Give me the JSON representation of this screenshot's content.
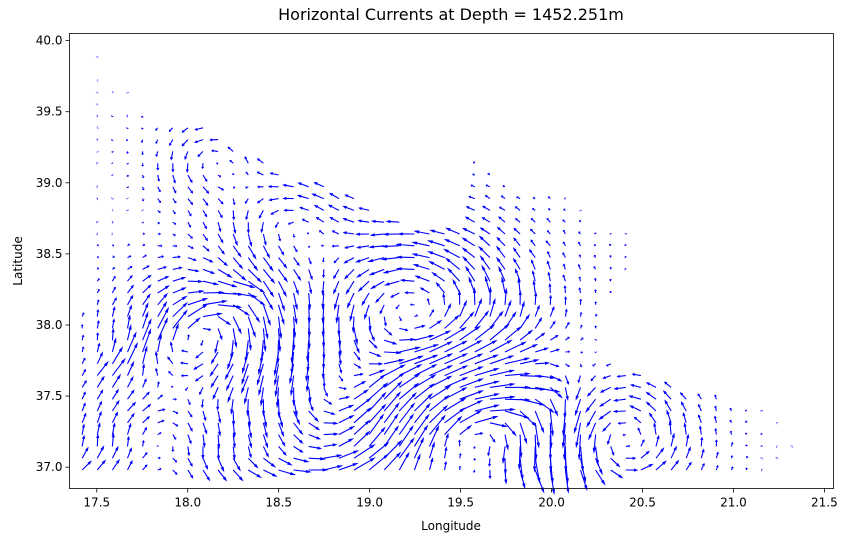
{
  "chart_data": {
    "type": "quiver",
    "title": "Horizontal Currents at Depth = 1452.251m",
    "xlabel": "Longitude",
    "ylabel": "Latitude",
    "xlim": [
      17.35,
      21.55
    ],
    "ylim": [
      36.85,
      40.05
    ],
    "x_ticks": [
      "17.5",
      "18.0",
      "18.5",
      "19.0",
      "19.5",
      "20.0",
      "20.5",
      "21.0",
      "21.5"
    ],
    "y_ticks": [
      "37.0",
      "37.5",
      "38.0",
      "38.5",
      "39.0",
      "39.5",
      "40.0"
    ],
    "grid": false,
    "legend": false,
    "arrow_color": "#0000ff",
    "grid_spacing_deg": 0.083,
    "eddies": [
      {
        "center": [
          19.25,
          38.05
        ],
        "radius": 0.42,
        "rotation": "counterclockwise",
        "strength": 0.9
      },
      {
        "center": [
          19.55,
          37.25
        ],
        "radius": 0.38,
        "rotation": "clockwise",
        "strength": 0.9
      },
      {
        "center": [
          18.05,
          37.95
        ],
        "radius": 0.28,
        "rotation": "clockwise",
        "strength": 0.7
      },
      {
        "center": [
          20.35,
          37.2
        ],
        "radius": 0.28,
        "rotation": "counterclockwise",
        "strength": 0.7
      },
      {
        "center": [
          18.8,
          37.45
        ],
        "radius": 0.25,
        "rotation": "counterclockwise",
        "strength": 0.5
      },
      {
        "center": [
          17.85,
          37.15
        ],
        "radius": 0.3,
        "rotation": "clockwise",
        "strength": 0.6
      },
      {
        "center": [
          18.55,
          38.7
        ],
        "radius": 0.25,
        "rotation": "counterclockwise",
        "strength": 0.5
      },
      {
        "center": [
          18.15,
          39.15
        ],
        "radius": 0.2,
        "rotation": "counterclockwise",
        "strength": 0.4
      }
    ],
    "dominant_currents": [
      {
        "from": [
          17.45,
          37.0
        ],
        "to": [
          19.9,
          37.0
        ],
        "direction": "eastward"
      },
      {
        "from": [
          19.0,
          37.05
        ],
        "to": [
          19.9,
          37.55
        ],
        "direction": "northeastward"
      },
      {
        "from": [
          17.55,
          37.65
        ],
        "to": [
          18.25,
          38.25
        ],
        "direction": "northeastward"
      }
    ]
  }
}
